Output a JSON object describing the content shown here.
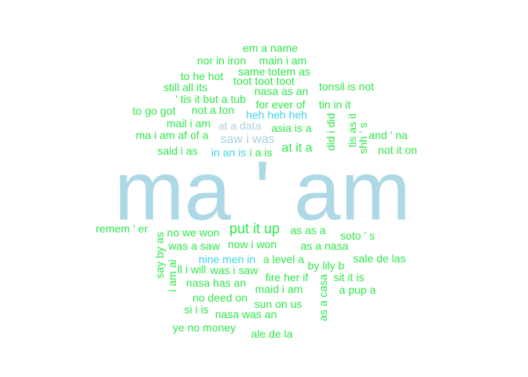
{
  "colors": {
    "largest": "#add8e6",
    "light_blue": "#b0cfe0",
    "cyan": "#40d4e8",
    "green": "#2ee84a"
  },
  "words": [
    {
      "text": "ma ' am",
      "color": "largest"
    },
    {
      "text": "put it up",
      "color": "green"
    },
    {
      "text": "saw i was",
      "color": "light_blue"
    },
    {
      "text": "at it a",
      "color": "green"
    },
    {
      "text": "em a name",
      "color": "green"
    },
    {
      "text": "nor in iron",
      "color": "green"
    },
    {
      "text": "main i am",
      "color": "green"
    },
    {
      "text": "same totem as",
      "color": "green"
    },
    {
      "text": "to he hot",
      "color": "green"
    },
    {
      "text": "toot toot toot",
      "color": "green"
    },
    {
      "text": "still all its",
      "color": "green"
    },
    {
      "text": "tonsil is not",
      "color": "green"
    },
    {
      "text": "nasa as an",
      "color": "green"
    },
    {
      "text": "' tis it but a tub",
      "color": "green"
    },
    {
      "text": "for ever of",
      "color": "green"
    },
    {
      "text": "tin in it",
      "color": "green"
    },
    {
      "text": "to go got",
      "color": "green"
    },
    {
      "text": "not a ton",
      "color": "green"
    },
    {
      "text": "heh heh heh",
      "color": "cyan"
    },
    {
      "text": "mail i am",
      "color": "green"
    },
    {
      "text": "at a data",
      "color": "light_blue"
    },
    {
      "text": "asia is a",
      "color": "green"
    },
    {
      "text": "did i did",
      "color": "green"
    },
    {
      "text": "tis as it",
      "color": "green"
    },
    {
      "text": "ma i am af of a",
      "color": "green"
    },
    {
      "text": "and ' na",
      "color": "green"
    },
    {
      "text": "shh ' s",
      "color": "green"
    },
    {
      "text": "said i as",
      "color": "green"
    },
    {
      "text": "in an is",
      "color": "cyan"
    },
    {
      "text": "i a is",
      "color": "green"
    },
    {
      "text": "not it on",
      "color": "green"
    },
    {
      "text": "remem ' er",
      "color": "green"
    },
    {
      "text": "no we won",
      "color": "green"
    },
    {
      "text": "as as a",
      "color": "green"
    },
    {
      "text": "soto ' s",
      "color": "green"
    },
    {
      "text": "say by as",
      "color": "green"
    },
    {
      "text": "was a saw",
      "color": "green"
    },
    {
      "text": "now i won",
      "color": "green"
    },
    {
      "text": "as a nasa",
      "color": "green"
    },
    {
      "text": "nine men in",
      "color": "cyan"
    },
    {
      "text": "a level a",
      "color": "green"
    },
    {
      "text": "sale de las",
      "color": "green"
    },
    {
      "text": "i am ai",
      "color": "green"
    },
    {
      "text": "by lily b",
      "color": "green"
    },
    {
      "text": "ll i will",
      "color": "green"
    },
    {
      "text": "was i saw",
      "color": "green"
    },
    {
      "text": "fire her if",
      "color": "green"
    },
    {
      "text": "sit it is",
      "color": "green"
    },
    {
      "text": "nasa has an",
      "color": "green"
    },
    {
      "text": "maid i am",
      "color": "green"
    },
    {
      "text": "as a casa",
      "color": "green"
    },
    {
      "text": "a pup a",
      "color": "green"
    },
    {
      "text": "no deed on",
      "color": "green"
    },
    {
      "text": "sun on us",
      "color": "green"
    },
    {
      "text": "si i is",
      "color": "green"
    },
    {
      "text": "nasa was an",
      "color": "green"
    },
    {
      "text": "ye no money",
      "color": "green"
    },
    {
      "text": "ale de la",
      "color": "green"
    }
  ]
}
